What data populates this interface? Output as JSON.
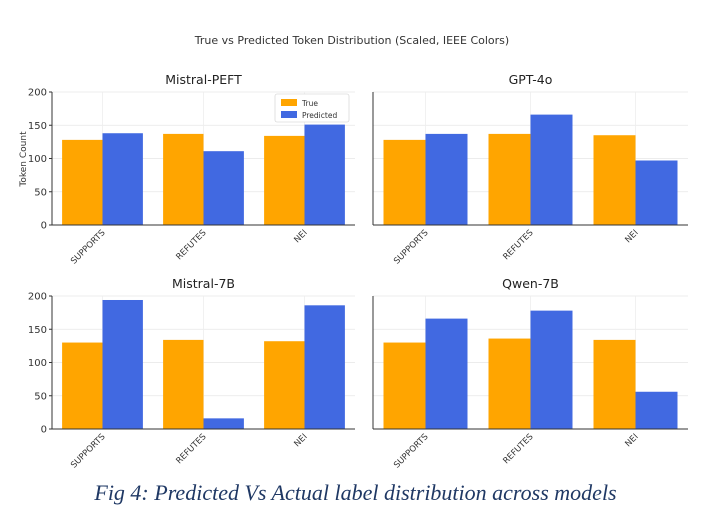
{
  "figure": {
    "suptitle": "True vs Predicted Token Distribution (Scaled, IEEE Colors)",
    "caption": "Fig 4: Predicted Vs Actual label distribution across models",
    "ylabel": "Token Count",
    "legend": [
      "True",
      "Predicted"
    ],
    "colors": {
      "True": "#FFA500",
      "Predicted": "#4169E1"
    }
  },
  "chart_data": [
    {
      "type": "bar",
      "title": "Mistral-PEFT",
      "categories": [
        "SUPPORTS",
        "REFUTES",
        "NEI"
      ],
      "series": [
        {
          "name": "True",
          "values": [
            128,
            137,
            134
          ]
        },
        {
          "name": "Predicted",
          "values": [
            138,
            111,
            151
          ]
        }
      ],
      "xlabel": "",
      "ylabel": "Token Count",
      "ylim": [
        0,
        200
      ],
      "yticks": [
        "0",
        "50",
        "100",
        "150",
        "200"
      ],
      "legend": "top-right",
      "grid": true
    },
    {
      "type": "bar",
      "title": "GPT-4o",
      "categories": [
        "SUPPORTS",
        "REFUTES",
        "NEI"
      ],
      "series": [
        {
          "name": "True",
          "values": [
            128,
            137,
            135
          ]
        },
        {
          "name": "Predicted",
          "values": [
            137,
            166,
            97
          ]
        }
      ],
      "xlabel": "",
      "ylabel": "",
      "ylim": [
        0,
        200
      ],
      "yticks": [],
      "grid": true
    },
    {
      "type": "bar",
      "title": "Mistral-7B",
      "categories": [
        "SUPPORTS",
        "REFUTES",
        "NEI"
      ],
      "series": [
        {
          "name": "True",
          "values": [
            130,
            134,
            132
          ]
        },
        {
          "name": "Predicted",
          "values": [
            194,
            16,
            186
          ]
        }
      ],
      "xlabel": "",
      "ylabel": "",
      "ylim": [
        0,
        200
      ],
      "yticks": [
        "0",
        "50",
        "100",
        "150",
        "200"
      ],
      "grid": true
    },
    {
      "type": "bar",
      "title": "Qwen-7B",
      "categories": [
        "SUPPORTS",
        "REFUTES",
        "NEI"
      ],
      "series": [
        {
          "name": "True",
          "values": [
            130,
            136,
            134
          ]
        },
        {
          "name": "Predicted",
          "values": [
            166,
            178,
            56
          ]
        }
      ],
      "xlabel": "",
      "ylabel": "",
      "ylim": [
        0,
        200
      ],
      "yticks": [],
      "grid": true
    }
  ]
}
